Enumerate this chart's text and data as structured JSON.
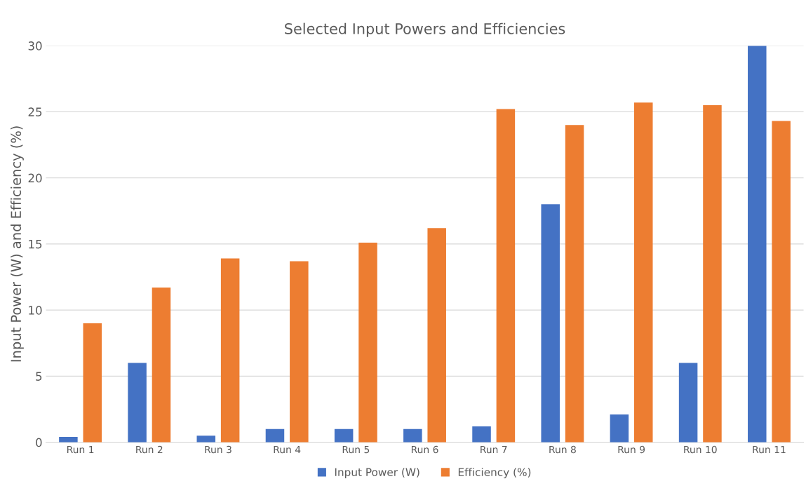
{
  "chart_data": {
    "type": "bar",
    "title": "Selected Input Powers and Efficiencies",
    "ylabel": "Input Power (W) and Efficiency (%)",
    "categories": [
      "Run 1",
      "Run 2",
      "Run 3",
      "Run 4",
      "Run 5",
      "Run 6",
      "Run 7",
      "Run 8",
      "Run 9",
      "Run 10",
      "Run 11"
    ],
    "series": [
      {
        "name": "Input Power (W)",
        "color": "#4472c4",
        "values": [
          0.4,
          6,
          0.5,
          1,
          1,
          1,
          1.2,
          18,
          2.1,
          6,
          30
        ]
      },
      {
        "name": "Efficiency (%)",
        "color": "#ed7d31",
        "values": [
          9,
          11.7,
          13.9,
          13.7,
          15.1,
          16.2,
          25.2,
          24,
          25.7,
          25.5,
          24.3
        ]
      }
    ],
    "ylim": [
      0,
      30
    ],
    "yticks": [
      0,
      5,
      10,
      15,
      20,
      25,
      30
    ],
    "grid": "y",
    "legend": "bottom"
  }
}
